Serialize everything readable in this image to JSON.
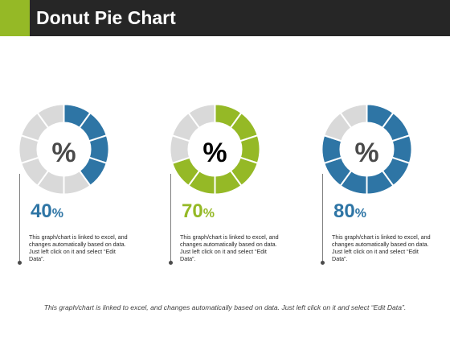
{
  "header": {
    "title": "Donut Pie Chart"
  },
  "colors": {
    "header_bg": "#262626",
    "accent": "#95b926",
    "inactive_segment": "#d9d9d9"
  },
  "chart_data": [
    {
      "type": "pie",
      "variant": "donut",
      "segments_total": 10,
      "filled_segments": 4,
      "value": 40,
      "center_label": "%",
      "value_label": "40",
      "value_unit": "%",
      "fill_color": "#2e75a5",
      "description": "This graph/chart is linked to excel, and changes automatically based on data. Just left click on it and select “Edit Data”."
    },
    {
      "type": "pie",
      "variant": "donut",
      "segments_total": 10,
      "filled_segments": 7,
      "value": 70,
      "center_label": "%",
      "value_label": "70",
      "value_unit": "%",
      "fill_color": "#95b926",
      "description": "This graph/chart is linked to excel, and changes automatically based on data. Just left click on it and select “Edit Data”."
    },
    {
      "type": "pie",
      "variant": "donut",
      "segments_total": 10,
      "filled_segments": 8,
      "value": 80,
      "center_label": "%",
      "value_label": "80",
      "value_unit": "%",
      "fill_color": "#2e75a5",
      "description": "This graph/chart is linked to excel, and changes automatically based on data. Just left click on it and select “Edit Data”."
    }
  ],
  "footer": {
    "text": "This graph/chart is linked to excel, and changes automatically based on data. Just left click on it and select “Edit Data”."
  }
}
